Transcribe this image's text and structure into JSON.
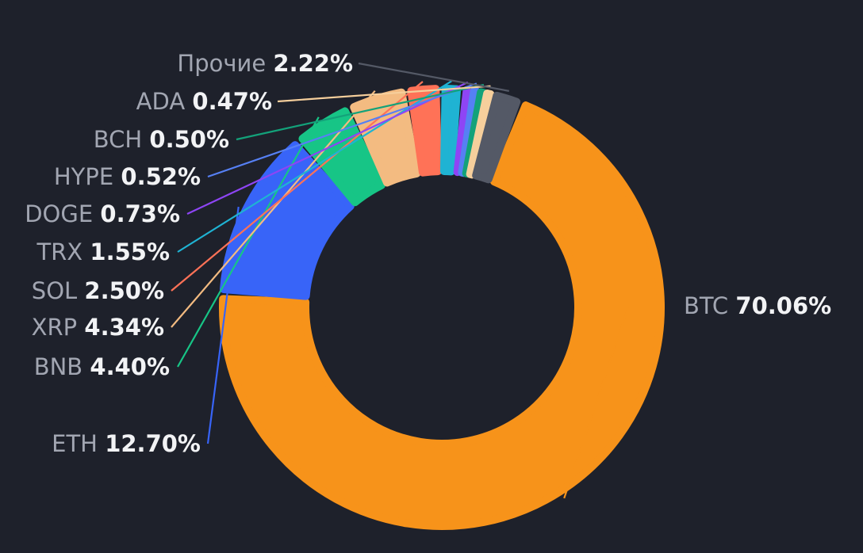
{
  "chart_data": {
    "type": "donut",
    "title": "",
    "background_color": "#1e212b",
    "legend": "none",
    "slices": [
      {
        "label": "BTC",
        "value": 70.06,
        "display": "70.06%",
        "color": "#f7931a"
      },
      {
        "label": "ETH",
        "value": 12.7,
        "display": "12.70%",
        "color": "#3864f8"
      },
      {
        "label": "BNB",
        "value": 4.4,
        "display": "4.40%",
        "color": "#17c586"
      },
      {
        "label": "XRP",
        "value": 4.34,
        "display": "4.34%",
        "color": "#f3bb81"
      },
      {
        "label": "SOL",
        "value": 2.5,
        "display": "2.50%",
        "color": "#ff7257"
      },
      {
        "label": "TRX",
        "value": 1.55,
        "display": "1.55%",
        "color": "#1fb3d3"
      },
      {
        "label": "DOGE",
        "value": 0.73,
        "display": "0.73%",
        "color": "#8e45f5"
      },
      {
        "label": "HYPE",
        "value": 0.52,
        "display": "0.52%",
        "color": "#5680f4"
      },
      {
        "label": "BCH",
        "value": 0.5,
        "display": "0.50%",
        "color": "#13a27a"
      },
      {
        "label": "ADA",
        "value": 0.47,
        "display": "0.47%",
        "color": "#f6cf9c"
      },
      {
        "label": "Прочие",
        "value": 2.22,
        "display": "2.22%",
        "color": "#545966"
      }
    ]
  }
}
